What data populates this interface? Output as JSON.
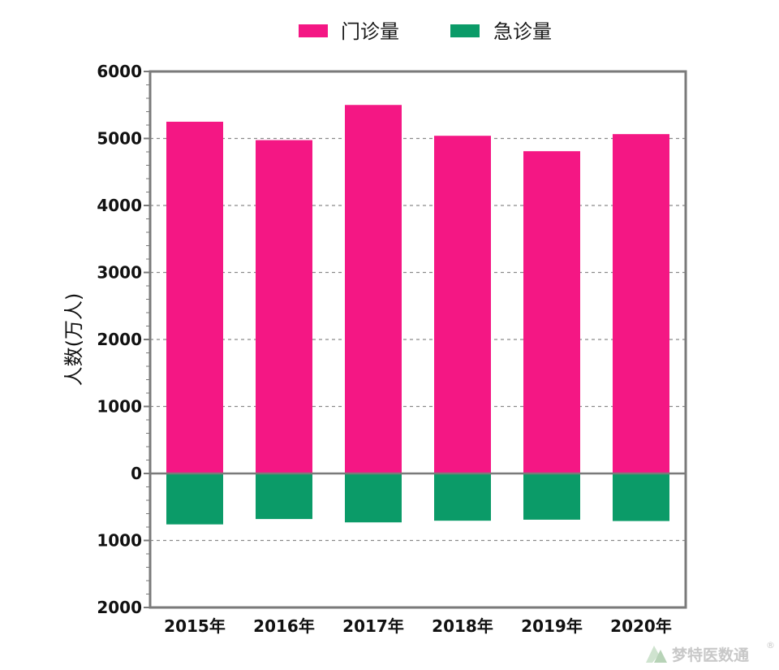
{
  "chart_data": {
    "type": "bar",
    "categories": [
      "2015年",
      "2016年",
      "2017年",
      "2018年",
      "2019年",
      "2020年"
    ],
    "series": [
      {
        "name": "门诊量",
        "color": "#F41784",
        "values": [
          5250,
          4975,
          5500,
          5040,
          4810,
          5065
        ]
      },
      {
        "name": "急诊量",
        "color": "#0B9B68",
        "values": [
          -760,
          -680,
          -730,
          -705,
          -690,
          -710
        ]
      }
    ],
    "ylabel": "人数(万人)",
    "ylim": [
      -2000,
      6000
    ],
    "yticks": [
      6000,
      5000,
      4000,
      3000,
      2000,
      1000,
      0,
      -1000,
      -2000
    ],
    "ytick_labels": [
      "6000",
      "5000",
      "4000",
      "3000",
      "2000",
      "1000",
      "0",
      "1000",
      "2000"
    ],
    "grid": true,
    "legend_position": "top"
  },
  "watermark": {
    "text": "梦特医数通",
    "mark": "®"
  }
}
